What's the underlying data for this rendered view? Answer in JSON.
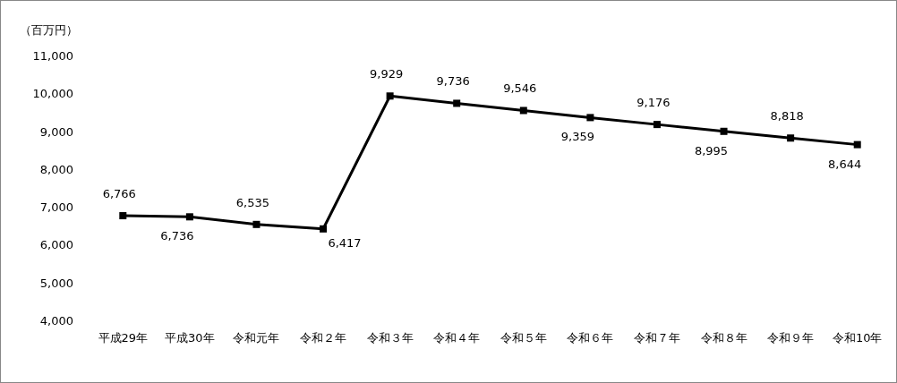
{
  "chart_data": {
    "type": "line",
    "ylabel": "（百万円）",
    "categories": [
      "平成29年",
      "平成30年",
      "令和元年",
      "令和２年",
      "令和３年",
      "令和４年",
      "令和５年",
      "令和６年",
      "令和７年",
      "令和８年",
      "令和９年",
      "令和10年"
    ],
    "series": [
      {
        "color": "#000000",
        "values": [
          6766,
          6736,
          6535,
          6417,
          9929,
          9736,
          9546,
          9359,
          9176,
          8995,
          8818,
          8644
        ],
        "value_labels": [
          "6,766",
          "6,736",
          "6,535",
          "6,417",
          "9,929",
          "9,736",
          "9,546",
          "9,359",
          "9,176",
          "8,995",
          "8,818",
          "8,644"
        ]
      }
    ],
    "ylim": [
      4000,
      11000
    ],
    "yticks": [
      {
        "value": 4000,
        "label": "4,000"
      },
      {
        "value": 5000,
        "label": "5,000"
      },
      {
        "value": 6000,
        "label": "6,000"
      },
      {
        "value": 7000,
        "label": "7,000"
      },
      {
        "value": 8000,
        "label": "8,000"
      },
      {
        "value": 9000,
        "label": "9,000"
      },
      {
        "value": 10000,
        "label": "10,000"
      },
      {
        "value": 11000,
        "label": "11,000"
      }
    ],
    "marker": "square",
    "line_style": "solid"
  }
}
